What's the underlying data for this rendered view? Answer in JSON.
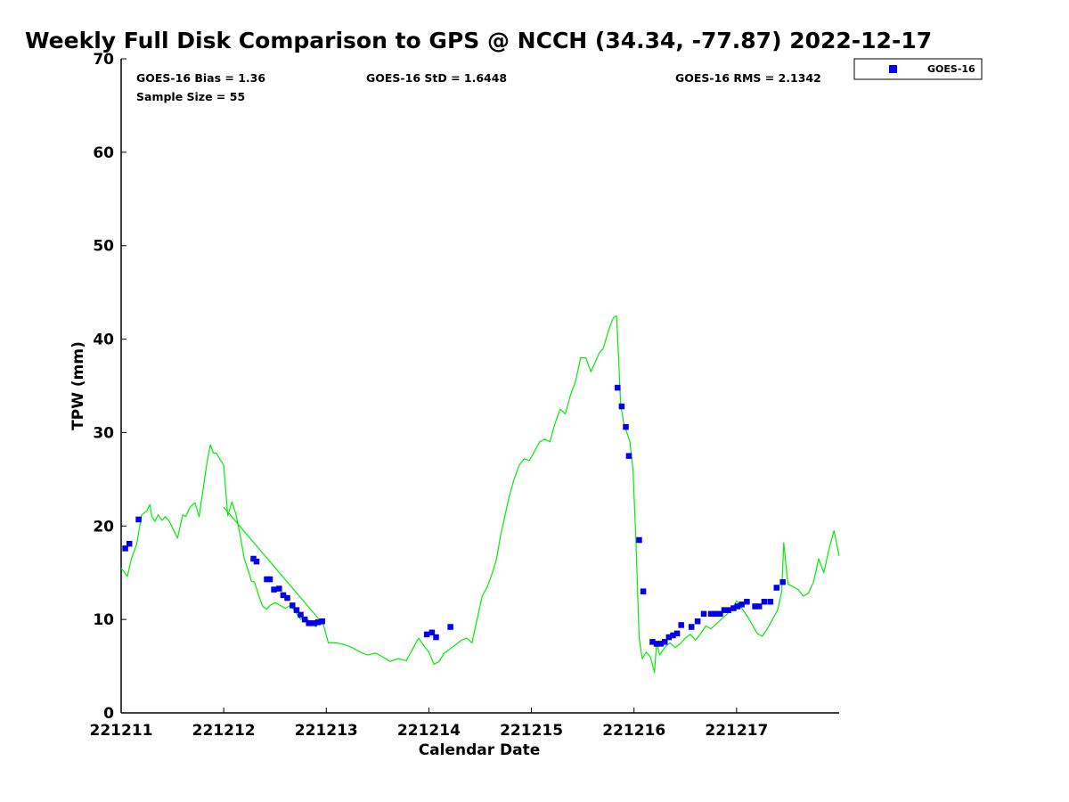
{
  "chart_data": {
    "type": "scatter",
    "title": "Weekly Full Disk Comparison to GPS @ NCCH (34.34, -77.87) 2022-12-17",
    "xlabel": "Calendar Date",
    "ylabel": "TPW (mm)",
    "xlim": [
      0,
      7
    ],
    "ylim": [
      0,
      70
    ],
    "x_ticks": [
      {
        "value": 0,
        "label": "221211"
      },
      {
        "value": 1,
        "label": "221212"
      },
      {
        "value": 2,
        "label": "221213"
      },
      {
        "value": 3,
        "label": "221214"
      },
      {
        "value": 4,
        "label": "221215"
      },
      {
        "value": 5,
        "label": "221216"
      },
      {
        "value": 6,
        "label": "221217"
      }
    ],
    "y_ticks": [
      0,
      10,
      20,
      30,
      40,
      50,
      60,
      70
    ],
    "grid": false,
    "legend_position": "top-right, outside plot",
    "stats": {
      "bias": "GOES-16 Bias = 1.36",
      "std": "GOES-16 StD = 1.6448",
      "rms": "GOES-16 RMS = 2.1342",
      "sample": "Sample Size = 55"
    },
    "legend": {
      "label": "GOES-16"
    },
    "colors": {
      "goes": "#0000ee",
      "gps": "#00ee00",
      "axis": "#000000"
    },
    "series": [
      {
        "name": "GOES-16",
        "marker": "square",
        "x": [
          0.04,
          0.08,
          0.17,
          1.29,
          1.32,
          1.42,
          1.45,
          1.49,
          1.54,
          1.58,
          1.62,
          1.67,
          1.71,
          1.75,
          1.79,
          1.83,
          1.88,
          1.92,
          1.96,
          2.98,
          3.03,
          3.07,
          3.21,
          4.84,
          4.88,
          4.92,
          4.95,
          5.05,
          5.09,
          5.18,
          5.22,
          5.26,
          5.3,
          5.34,
          5.38,
          5.42,
          5.46,
          5.56,
          5.62,
          5.68,
          5.75,
          5.79,
          5.84,
          5.88,
          5.92,
          5.97,
          6.01,
          6.05,
          6.1,
          6.18,
          6.22,
          6.27,
          6.33,
          6.39,
          6.45
        ],
        "y": [
          17.6,
          18.1,
          20.7,
          16.5,
          16.2,
          14.3,
          14.3,
          13.2,
          13.3,
          12.6,
          12.3,
          11.5,
          11.0,
          10.5,
          10.0,
          9.6,
          9.6,
          9.7,
          9.8,
          8.4,
          8.6,
          8.1,
          9.2,
          34.8,
          32.8,
          30.6,
          27.5,
          18.5,
          13.0,
          7.6,
          7.4,
          7.4,
          7.6,
          8.1,
          8.3,
          8.5,
          9.4,
          9.2,
          9.8,
          10.6,
          10.6,
          10.6,
          10.6,
          11.0,
          11.0,
          11.2,
          11.4,
          11.6,
          11.9,
          11.4,
          11.4,
          11.9,
          11.9,
          13.4,
          14.0
        ]
      },
      {
        "name": "GPS",
        "style": "line",
        "x": [
          0.0,
          0.06,
          0.1,
          0.15,
          0.2,
          0.25,
          0.28,
          0.3,
          0.33,
          0.36,
          0.4,
          0.43,
          0.47,
          0.5,
          0.55,
          0.6,
          0.63,
          0.67,
          0.72,
          0.76,
          0.8,
          0.84,
          0.87,
          0.9,
          0.93,
          0.96,
          1.0,
          1.04,
          1.08,
          1.12,
          1.16,
          1.2,
          1.24,
          1.27,
          1.3,
          1.34,
          1.38,
          1.42,
          1.45,
          1.5,
          1.55,
          1.6,
          1.65,
          1.7,
          1.75,
          1.8,
          1.85,
          1.9,
          1.94,
          1.97,
          1.0,
          1.97,
          2.02,
          2.1,
          2.18,
          2.25,
          2.33,
          2.4,
          2.48,
          2.55,
          2.62,
          2.7,
          2.78,
          2.85,
          2.9,
          2.95,
          3.0,
          3.05,
          3.1,
          3.15,
          3.2,
          3.25,
          3.32,
          3.37,
          3.42,
          3.48,
          3.52,
          3.57,
          3.62,
          3.66,
          3.7,
          3.74,
          3.78,
          3.83,
          3.88,
          3.93,
          3.98,
          4.03,
          4.08,
          4.13,
          4.18,
          4.23,
          4.28,
          4.33,
          4.38,
          4.43,
          4.48,
          4.53,
          4.58,
          4.62,
          4.66,
          4.7,
          4.74,
          4.77,
          4.8,
          4.83,
          4.85,
          4.87,
          4.9,
          4.93,
          4.96,
          4.99,
          5.02,
          5.05,
          5.08,
          5.12,
          5.16,
          5.2,
          5.22,
          5.25,
          5.3,
          5.35,
          5.4,
          5.45,
          5.5,
          5.55,
          5.6,
          5.65,
          5.7,
          5.75,
          5.8,
          5.85,
          5.9,
          5.95,
          6.0,
          6.05,
          6.1,
          6.15,
          6.2,
          6.25,
          6.3,
          6.35,
          6.4,
          6.44,
          6.46,
          6.5,
          6.55,
          6.6,
          6.65,
          6.7,
          6.75,
          6.8,
          6.85,
          6.9,
          6.95,
          7.0
        ],
        "y": [
          15.5,
          14.6,
          16.5,
          18.0,
          21.2,
          21.6,
          22.3,
          21.0,
          20.5,
          21.2,
          20.6,
          21.0,
          20.5,
          19.8,
          18.7,
          21.2,
          21.0,
          22.0,
          22.5,
          21.0,
          24.0,
          27.0,
          28.7,
          27.8,
          27.8,
          27.2,
          26.5,
          21.1,
          22.6,
          21.2,
          19.0,
          16.5,
          15.2,
          14.1,
          14.0,
          12.6,
          11.4,
          11.1,
          11.5,
          11.8,
          11.5,
          11.2,
          11.5,
          10.8,
          10.0,
          10.2,
          9.6,
          9.2,
          10.0,
          9.5,
          22.0,
          9.5,
          7.5,
          7.5,
          7.3,
          7.0,
          6.5,
          6.2,
          6.4,
          6.0,
          5.5,
          5.8,
          5.6,
          7.0,
          8.0,
          7.2,
          6.5,
          5.2,
          5.5,
          6.4,
          6.8,
          7.2,
          7.8,
          8.0,
          7.5,
          10.5,
          12.5,
          13.5,
          15.0,
          16.5,
          19.0,
          21.0,
          23.0,
          25.0,
          26.5,
          27.2,
          27.0,
          28.0,
          29.0,
          29.3,
          29.0,
          31.0,
          32.5,
          32.0,
          34.0,
          35.5,
          38.0,
          38.0,
          36.5,
          37.5,
          38.5,
          39.0,
          40.5,
          41.5,
          42.3,
          42.5,
          38.0,
          33.0,
          31.0,
          30.0,
          29.0,
          26.0,
          18.0,
          8.0,
          5.8,
          6.5,
          6.0,
          4.3,
          7.5,
          6.2,
          7.0,
          7.5,
          7.0,
          7.4,
          8.0,
          8.4,
          7.8,
          8.5,
          9.3,
          9.0,
          9.5,
          10.0,
          10.5,
          11.0,
          12.0,
          11.2,
          10.4,
          9.5,
          8.5,
          8.2,
          9.0,
          10.0,
          11.0,
          13.0,
          18.2,
          13.8,
          13.5,
          13.2,
          12.5,
          12.8,
          14.0,
          16.5,
          15.0,
          17.5,
          19.5,
          16.8
        ]
      }
    ]
  }
}
